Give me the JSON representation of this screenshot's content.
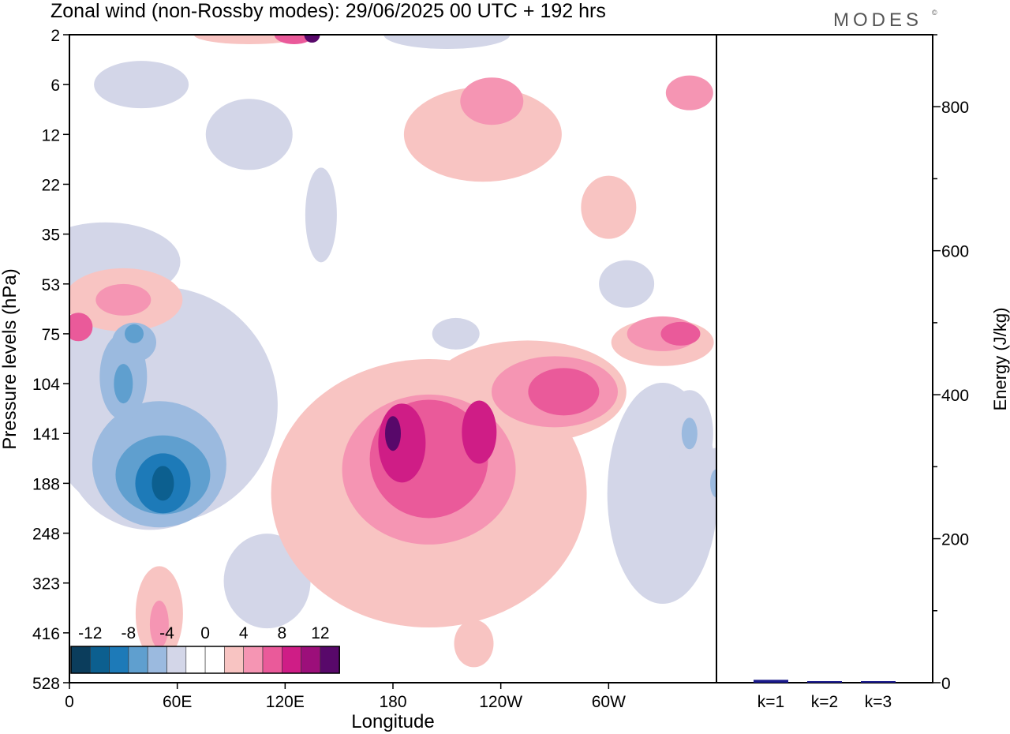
{
  "header": {
    "title": "Zonal wind (non-Rossby modes):  29/06/2025  00 UTC  + 192 hrs",
    "logo": "MODES",
    "logo_mark": "©"
  },
  "colors": {
    "neg": [
      "#0b3d5c",
      "#0c5f8f",
      "#1d7ab8",
      "#5f9fcf",
      "#9bbadf",
      "#d3d6e8"
    ],
    "zero": "#ffffff",
    "pos": [
      "#f8c4c2",
      "#f595b3",
      "#ea5a9a",
      "#cf1d86",
      "#9c0f7a",
      "#58086a"
    ],
    "bar": "#1a1a8c"
  },
  "chart_data": [
    {
      "type": "heatmap",
      "title": "Zonal wind (non-Rossby modes):  29/06/2025  00 UTC  + 192 hrs",
      "xlabel": "Longitude",
      "ylabel": "Pressure levels (hPa)",
      "x_ticks": [
        "0",
        "60E",
        "120E",
        "180",
        "120W",
        "60W"
      ],
      "x_tick_degrees": [
        0,
        60,
        120,
        180,
        240,
        300
      ],
      "xlim": [
        0,
        360
      ],
      "y_levels": [
        "2",
        "6",
        "12",
        "22",
        "35",
        "53",
        "75",
        "104",
        "141",
        "188",
        "248",
        "323",
        "416",
        "528"
      ],
      "colorbar": {
        "labels": [
          "-12",
          "-8",
          "-4",
          "0",
          "4",
          "8",
          "12"
        ],
        "levels": [
          -14,
          -12,
          -10,
          -8,
          -6,
          -4,
          -2,
          0,
          2,
          4,
          6,
          8,
          10,
          12,
          14
        ]
      },
      "features": [
        {
          "lon": 52,
          "level": 188,
          "value": -12
        },
        {
          "lon": 30,
          "level": 104,
          "value": -9
        },
        {
          "lon": 36,
          "level": 75,
          "value": -8
        },
        {
          "lon": 135,
          "level": 2,
          "value": 12
        },
        {
          "lon": 180,
          "level": 141,
          "value": 11
        },
        {
          "lon": 228,
          "level": 141,
          "value": 8
        },
        {
          "lon": 280,
          "level": 104,
          "value": 8
        },
        {
          "lon": 340,
          "level": 75,
          "value": 9
        },
        {
          "lon": 345,
          "level": 141,
          "value": -6
        },
        {
          "lon": 360,
          "level": 188,
          "value": -7
        }
      ]
    },
    {
      "type": "bar",
      "categories": [
        "k=1",
        "k=2",
        "k=3"
      ],
      "values": [
        4,
        1,
        1
      ],
      "ylabel": "Energy (J/kg)",
      "ylim": [
        0,
        900
      ],
      "y_ticks": [
        0,
        200,
        400,
        600,
        800
      ],
      "grid": false
    }
  ]
}
